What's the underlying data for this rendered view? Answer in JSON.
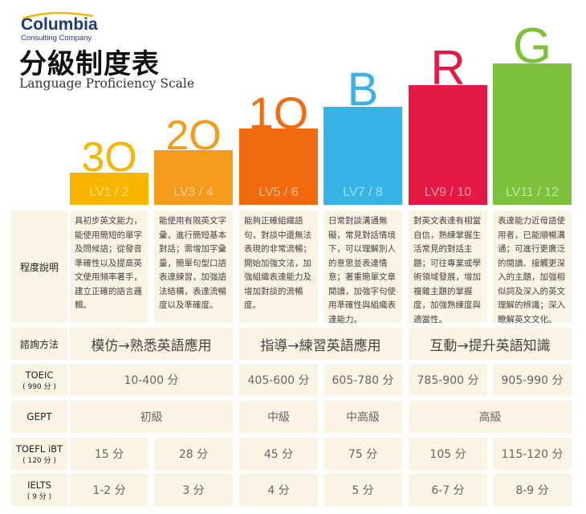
{
  "header": {
    "logo_name": "Columbia",
    "logo_sub": "Consulting Company",
    "title_zh": "分級制度表",
    "title_en": "Language Proficiency Scale"
  },
  "bars": [
    {
      "big": "3O",
      "level": "LV1 / 2",
      "color": "#f7b500"
    },
    {
      "big": "2O",
      "level": "LV3 / 4",
      "color": "#f59a1d"
    },
    {
      "big": "1O",
      "level": "LV5 / 6",
      "color": "#f26a10"
    },
    {
      "big": "B",
      "level": "LV7 / 8",
      "color": "#38b3e6"
    },
    {
      "big": "R",
      "level": "LV9 / 10",
      "color": "#e31844"
    },
    {
      "big": "G",
      "level": "LV11 / 12",
      "color": "#7dc13a"
    }
  ],
  "rows": {
    "desc_label": "程度說明",
    "method_label": "諮詢方法",
    "toeic_label": "TOEIC",
    "toeic_sub": "( 990 分 )",
    "gept_label": "GEPT",
    "toefl_label": "TOEFL iBT",
    "toefl_sub": "( 120 分 )",
    "ielts_label": "IELTS",
    "ielts_sub": "( 9 分 )"
  },
  "descriptions": [
    "具初步英文能力，能使用簡短的單字及問候語；從發音準確性以及提高英文使用頻率著手，建立正確的語言邏輯。",
    "能使用有限英文字彙，進行簡短基本對話；需增加字彙量，簡單句型口語表達練習，加強語法結構，表達流暢度以及準確度。",
    "能夠正確組織語句，對談中還無法表現的非常流暢；開始加強文法，加強組織表達能力及增加對談的流暢度。",
    "日常對談溝通無礙，常見對話情境下，可以理解別人的意思並表達情意；著重簡單文章閱讀，加強字句使用準確性與組織表達能力。",
    "對英文表達有相當自信，熟練掌握生活常見的對話主題；可往專業或學術領域發展，增加複雜主題的掌握度，加強熟練度與適當性。",
    "表達能力近母語使用者，已能順暢溝通；可進行更廣泛的閱讀、接觸更深入的主題，加強相似詞及深入的英文理解的辨識；深入瞭解英文文化。"
  ],
  "methods": [
    "模仿→熟悉英語應用",
    "指導→練習英語應用",
    "互動→提升英語知識"
  ],
  "toeic": [
    "10-400 分",
    "405-600 分",
    "605-780 分",
    "785-900 分",
    "905-990 分"
  ],
  "gept": [
    "初級",
    "中級",
    "中高級",
    "高級"
  ],
  "toefl": [
    "15 分",
    "28 分",
    "45 分",
    "75 分",
    "105 分",
    "115-120 分"
  ],
  "ielts": [
    "1-2 分",
    "3 分",
    "4 分",
    "5 分",
    "6-7 分",
    "8-9 分"
  ]
}
